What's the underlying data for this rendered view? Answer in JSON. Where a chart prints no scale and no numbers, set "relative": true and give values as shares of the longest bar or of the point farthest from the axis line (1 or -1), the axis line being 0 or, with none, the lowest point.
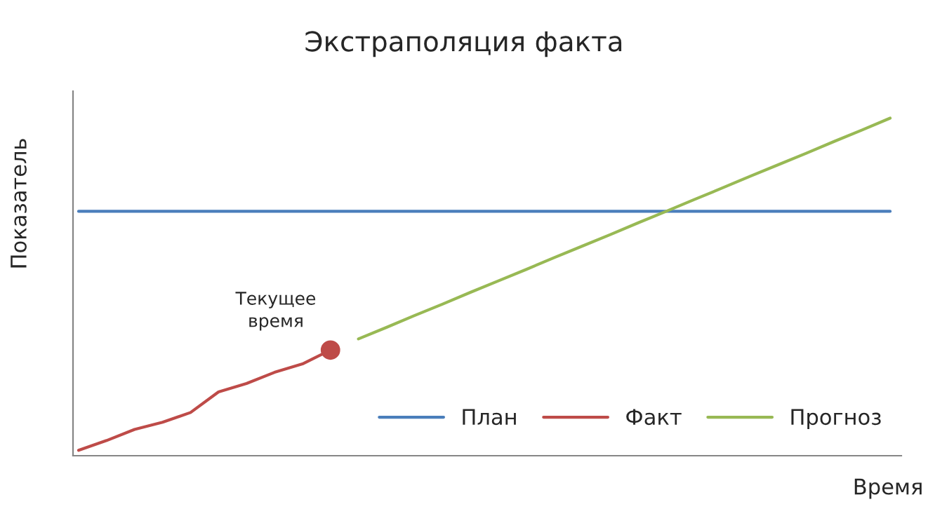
{
  "chart_data": {
    "type": "line",
    "title": "Экстраполяция факта",
    "xlabel": "Время",
    "ylabel": "Показатель",
    "relative": true,
    "legend": "bottom right",
    "grid": false,
    "categories": [
      null,
      null,
      null,
      null,
      null,
      null,
      null,
      null,
      null,
      null,
      null,
      null,
      null,
      null,
      null,
      null,
      null,
      null,
      null,
      null,
      null,
      null,
      null,
      null,
      null,
      null,
      null,
      null,
      null,
      null
    ],
    "annotations": [
      "Текущее время"
    ],
    "series": [
      {
        "name": "План",
        "color": "#4a7ebb",
        "values": [
          0.724,
          0.724,
          0.724,
          0.724,
          0.724,
          0.724,
          0.724,
          0.724,
          0.724,
          0.724,
          0.724,
          0.724,
          0.724,
          0.724,
          0.724,
          0.724,
          0.724,
          0.724,
          0.724,
          0.724,
          0.724,
          0.724,
          0.724,
          0.724,
          0.724,
          0.724,
          0.724,
          0.724,
          0.724,
          0.724
        ]
      },
      {
        "name": "Факт",
        "color": "#be4b48",
        "values": [
          0.016,
          0.045,
          0.078,
          0.099,
          0.128,
          0.189,
          0.214,
          0.247,
          0.272,
          0.313,
          null,
          null,
          null,
          null,
          null,
          null,
          null,
          null,
          null,
          null,
          null,
          null,
          null,
          null,
          null,
          null,
          null,
          null,
          null,
          null
        ]
      },
      {
        "name": "Прогноз",
        "color": "#98b954",
        "values": [
          null,
          null,
          null,
          null,
          null,
          null,
          null,
          null,
          null,
          null,
          0.346,
          0.38,
          0.415,
          0.449,
          0.484,
          0.518,
          0.552,
          0.587,
          0.621,
          0.655,
          0.69,
          0.724,
          0.759,
          0.793,
          0.828,
          0.862,
          0.896,
          0.931,
          0.965,
          1.0
        ]
      }
    ]
  }
}
